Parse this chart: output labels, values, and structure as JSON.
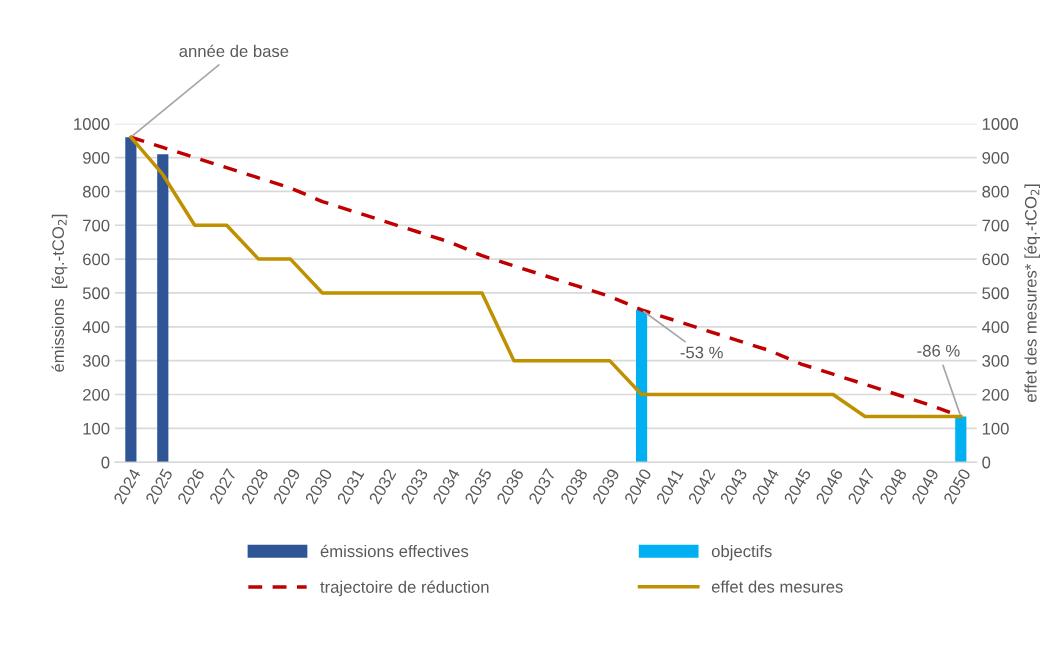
{
  "chart_data": {
    "type": "bar",
    "categories": [
      "2024",
      "2025",
      "2026",
      "2027",
      "2028",
      "2029",
      "2030",
      "2031",
      "2032",
      "2033",
      "2034",
      "2035",
      "2036",
      "2037",
      "2038",
      "2039",
      "2040",
      "2041",
      "2042",
      "2043",
      "2044",
      "2045",
      "2046",
      "2047",
      "2048",
      "2049",
      "2050"
    ],
    "ylabel": "émissions  [éq.-tCO$_{2}$]",
    "y2label": "effet des mesures* [éq.-tCO$_{2}$]",
    "ylim": [
      0,
      1000
    ],
    "yticks": [
      0,
      100,
      200,
      300,
      400,
      500,
      600,
      700,
      800,
      900,
      1000
    ],
    "y2lim": [
      0,
      1000
    ],
    "y2ticks": [
      0,
      100,
      200,
      300,
      400,
      500,
      600,
      700,
      800,
      900,
      1000
    ],
    "grid": "y",
    "legend": "bottom",
    "series": [
      {
        "name": "émissions effectives",
        "color": "#2f5597",
        "values": [
          960,
          910,
          null,
          null,
          null,
          null,
          null,
          null,
          null,
          null,
          null,
          null,
          null,
          null,
          null,
          null,
          null,
          null,
          null,
          null,
          null,
          null,
          null,
          null,
          null,
          null,
          null
        ]
      },
      {
        "name": "objectifs",
        "color": "#00b0f0",
        "values": [
          null,
          null,
          null,
          null,
          null,
          null,
          null,
          null,
          null,
          null,
          null,
          null,
          null,
          null,
          null,
          null,
          450,
          null,
          null,
          null,
          null,
          null,
          null,
          null,
          null,
          null,
          135
        ]
      },
      {
        "name": "trajectoire de réduction",
        "type": "line",
        "line_style": "dashed",
        "color": "#c00000",
        "values": [
          960,
          930,
          900,
          870,
          840,
          810,
          770,
          740,
          710,
          680,
          650,
          610,
          580,
          550,
          520,
          490,
          450,
          420,
          390,
          360,
          330,
          290,
          260,
          230,
          200,
          170,
          135
        ]
      },
      {
        "name": "effet des mesures",
        "type": "line",
        "line_style": "solid",
        "axis": "y2",
        "color": "#bf9000",
        "values": [
          960,
          850,
          700,
          700,
          600,
          600,
          500,
          500,
          500,
          500,
          500,
          500,
          300,
          300,
          300,
          300,
          200,
          200,
          200,
          200,
          200,
          200,
          200,
          135,
          135,
          135,
          135
        ]
      }
    ],
    "annotations": [
      {
        "text": "année de base",
        "x": "2024",
        "y": 960
      },
      {
        "text": "-53 %",
        "x": "2040",
        "y": 450
      },
      {
        "text": "-86 %",
        "x": "2050",
        "y": 135
      }
    ]
  }
}
